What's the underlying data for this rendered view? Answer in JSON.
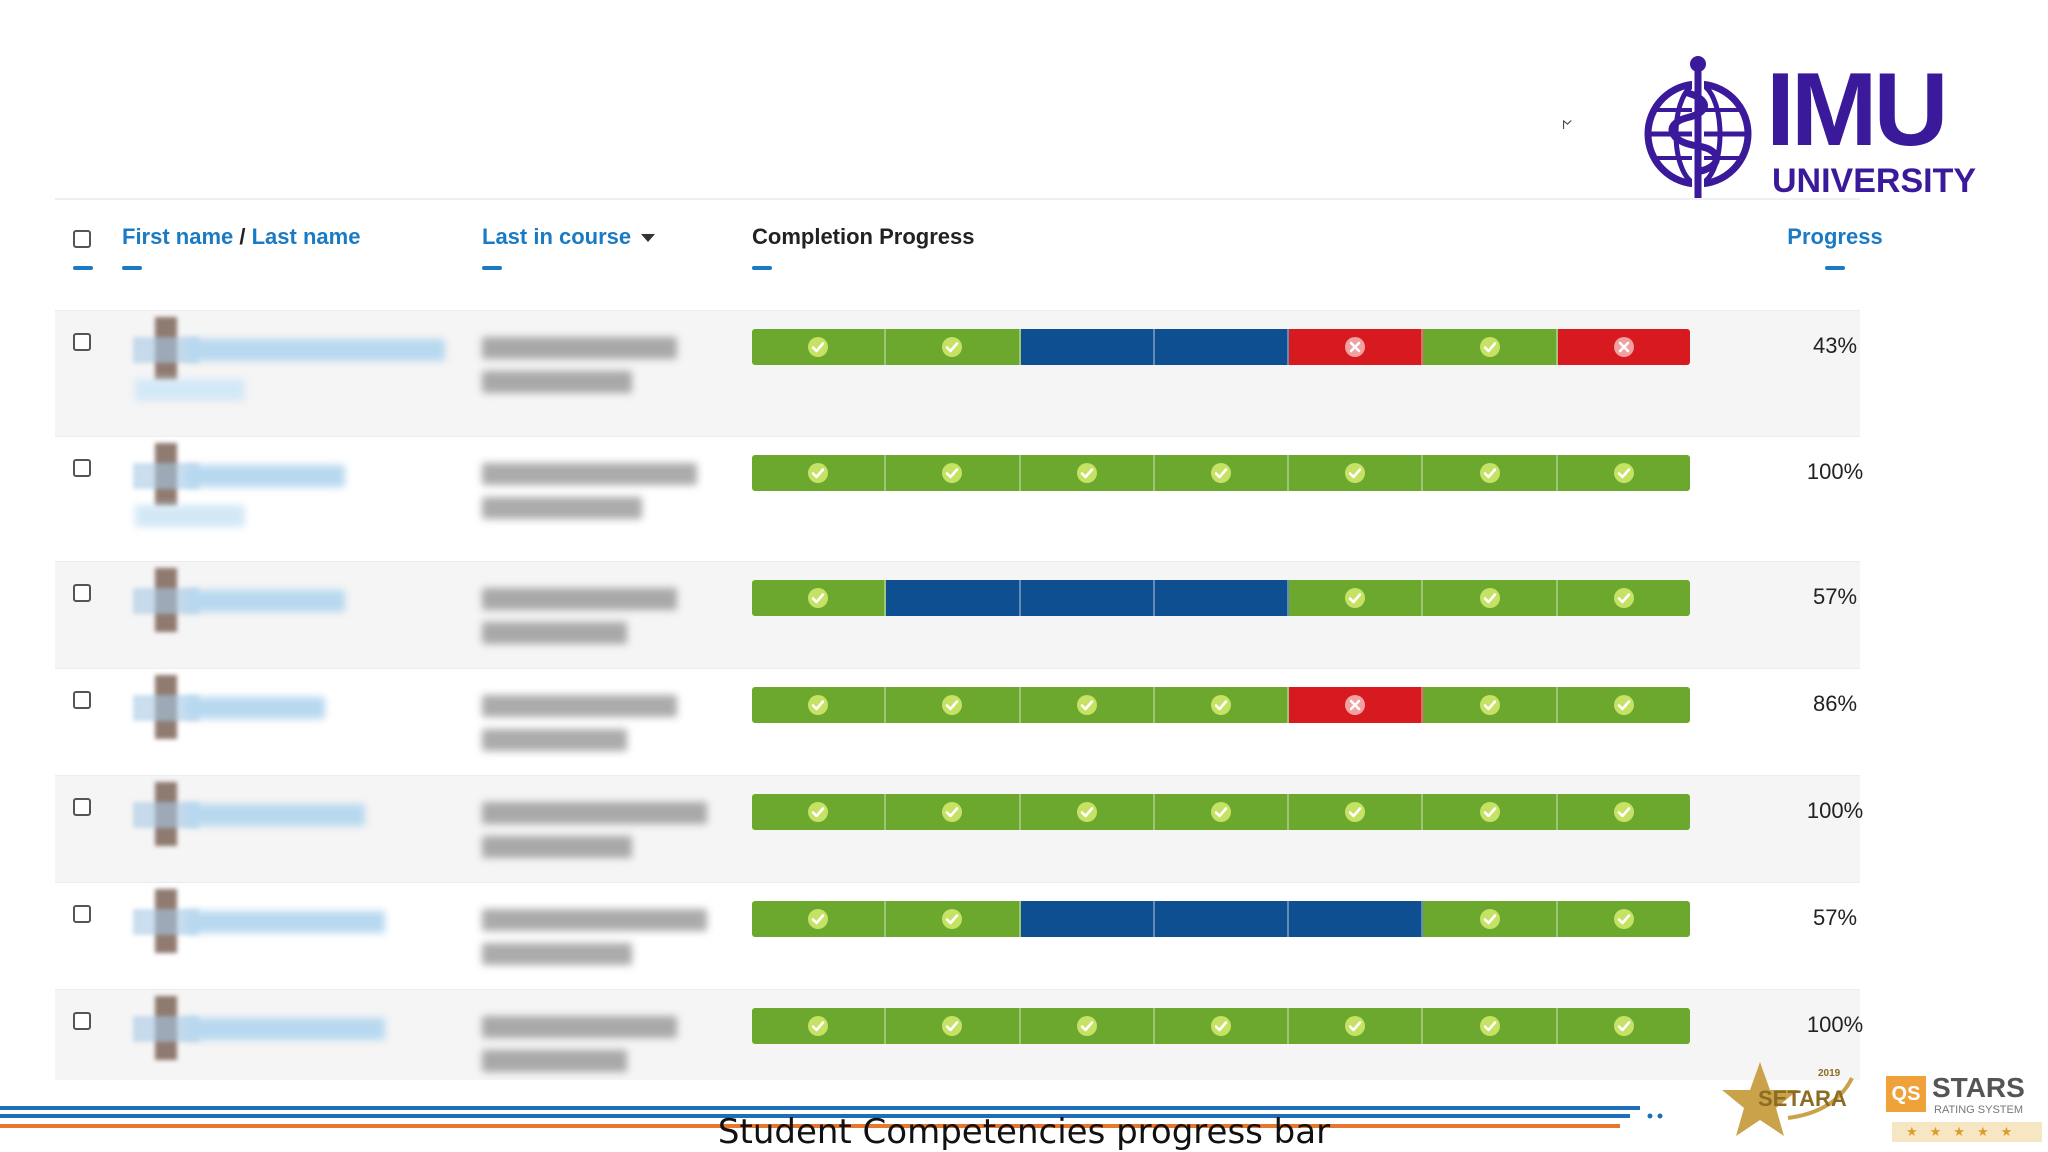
{
  "brand": {
    "logo_main": "IMU",
    "logo_sub": "UNIVERSITY",
    "colors": {
      "brand": "#3a1a9a",
      "link": "#1a7bc4",
      "complete": "#6ba82d",
      "pending": "#0e4f91",
      "failed": "#d71920"
    }
  },
  "cursor_glyph": "𐌍",
  "table": {
    "headers": {
      "first_name": "First name",
      "separator": " / ",
      "last_name": "Last name",
      "last_in_course": "Last in course",
      "completion": "Completion Progress",
      "progress": "Progress"
    },
    "rows": [
      {
        "progress": "43%",
        "progress_value": 43,
        "segments": [
          "complete",
          "complete",
          "pending",
          "pending",
          "failed",
          "complete",
          "failed"
        ]
      },
      {
        "progress": "100%",
        "progress_value": 100,
        "segments": [
          "complete",
          "complete",
          "complete",
          "complete",
          "complete",
          "complete",
          "complete"
        ]
      },
      {
        "progress": "57%",
        "progress_value": 57,
        "segments": [
          "complete",
          "pending",
          "pending",
          "pending",
          "complete",
          "complete",
          "complete"
        ]
      },
      {
        "progress": "86%",
        "progress_value": 86,
        "segments": [
          "complete",
          "complete",
          "complete",
          "complete",
          "failed",
          "complete",
          "complete"
        ]
      },
      {
        "progress": "100%",
        "progress_value": 100,
        "segments": [
          "complete",
          "complete",
          "complete",
          "complete",
          "complete",
          "complete",
          "complete"
        ]
      },
      {
        "progress": "57%",
        "progress_value": 57,
        "segments": [
          "complete",
          "complete",
          "pending",
          "pending",
          "pending",
          "complete",
          "complete"
        ]
      },
      {
        "progress": "100%",
        "progress_value": 100,
        "segments": [
          "complete",
          "complete",
          "complete",
          "complete",
          "complete",
          "complete",
          "complete"
        ]
      }
    ]
  },
  "footer": {
    "caption": "Student Competencies progress bar",
    "setara_label": "SETARA",
    "setara_year": "2019",
    "qs_label": "QS",
    "stars_label": "STARS",
    "stars_sub": "RATING SYSTEM"
  }
}
